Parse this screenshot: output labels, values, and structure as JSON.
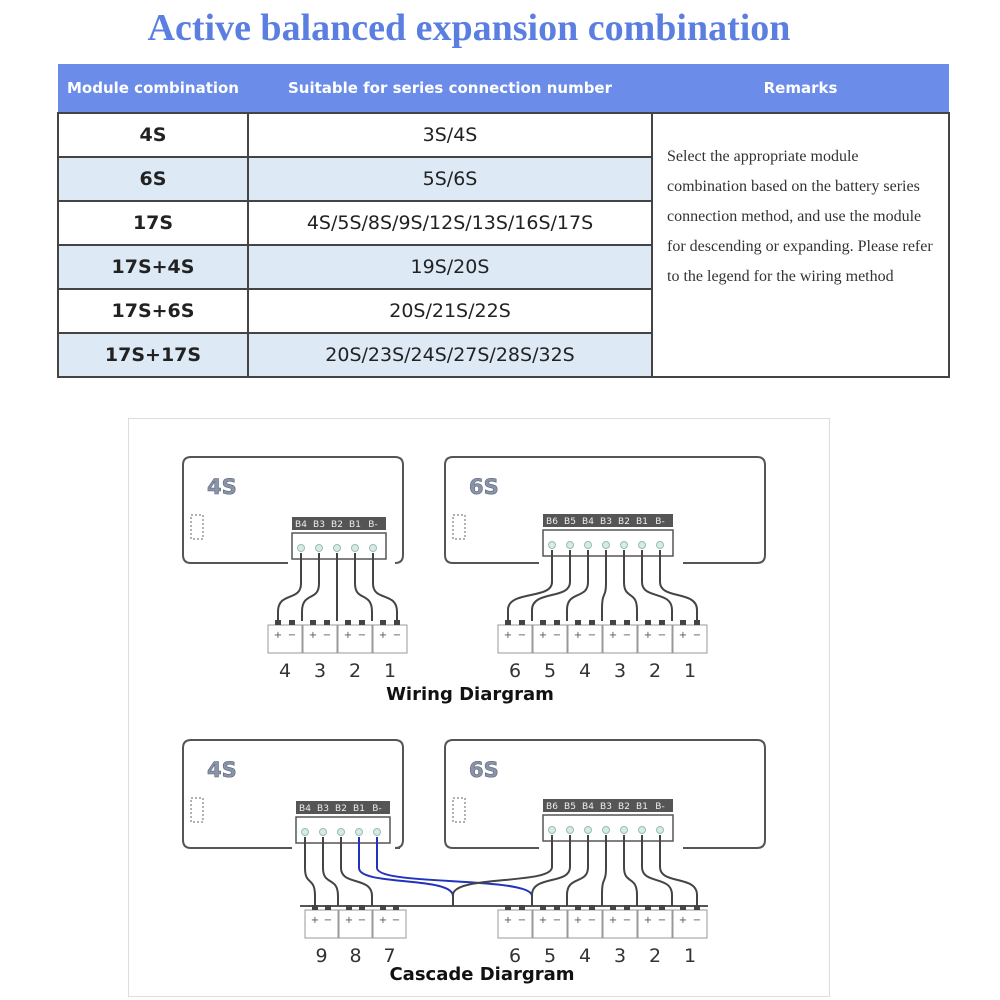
{
  "title": "Active balanced expansion combination",
  "table": {
    "headers": [
      "Module combination",
      "Suitable for series connection number",
      "Remarks"
    ],
    "rows": [
      {
        "module": "4S",
        "series": "3S/4S"
      },
      {
        "module": "6S",
        "series": "5S/6S"
      },
      {
        "module": "17S",
        "series": "4S/5S/8S/9S/12S/13S/16S/17S"
      },
      {
        "module": "17S+4S",
        "series": "19S/20S"
      },
      {
        "module": "17S+6S",
        "series": "20S/21S/22S"
      },
      {
        "module": "17S+17S",
        "series": "20S/23S/24S/27S/28S/32S"
      }
    ],
    "remarks": "Select the appropriate module combination based on the battery series connection method, and use the module for descending or expanding. Please refer to the legend for the wiring method"
  },
  "diagrams": {
    "wiring_caption": "Wiring Diargram",
    "cascade_caption": "Cascade Diargram",
    "module_4s": {
      "label": "4S",
      "terminals": [
        "B4",
        "B3",
        "B2",
        "B1",
        "B-"
      ]
    },
    "module_6s": {
      "label": "6S",
      "terminals": [
        "B6",
        "B5",
        "B4",
        "B3",
        "B2",
        "B1",
        "B-"
      ]
    },
    "wiring_4s_cells": [
      "4",
      "3",
      "2",
      "1"
    ],
    "wiring_6s_cells": [
      "6",
      "5",
      "4",
      "3",
      "2",
      "1"
    ],
    "cascade_4s_cells": [
      "9",
      "8",
      "7"
    ],
    "cascade_6s_cells": [
      "6",
      "5",
      "4",
      "3",
      "2",
      "1"
    ],
    "cell_polarity": [
      "+",
      "−"
    ],
    "colors": {
      "accent": "#6b8ce8",
      "title": "#5b7fe0",
      "cascade_wire": "#2233bb",
      "wire": "#444444"
    }
  }
}
